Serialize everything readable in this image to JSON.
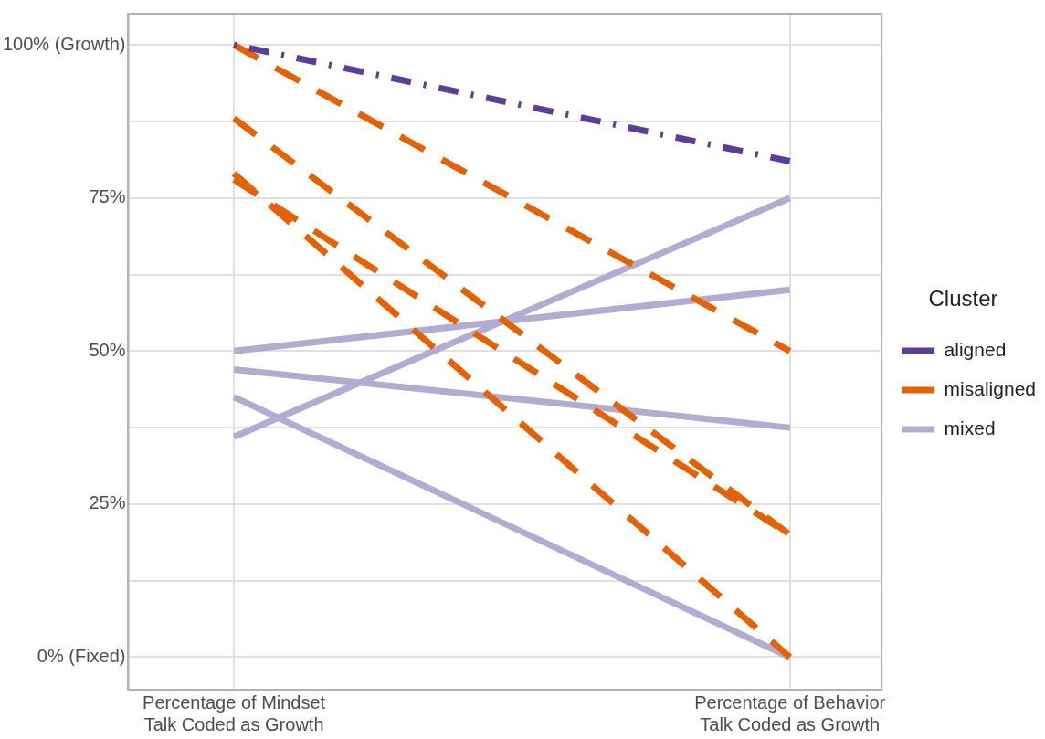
{
  "chart_data": {
    "type": "line",
    "legend_title": "Cluster",
    "legend": "right",
    "grid": true,
    "categories": [
      "Percentage of Mindset\nTalk Coded as Growth",
      "Percentage of Behavior\nTalk Coded as Growth"
    ],
    "ylim": [
      -5.3,
      105.1
    ],
    "yticks": [
      {
        "value": 0,
        "label": "0% (Fixed)"
      },
      {
        "value": 12.5,
        "label": null
      },
      {
        "value": 25,
        "label": "25%"
      },
      {
        "value": 37.5,
        "label": null
      },
      {
        "value": 50,
        "label": "50%"
      },
      {
        "value": 62.5,
        "label": null
      },
      {
        "value": 75,
        "label": "75%"
      },
      {
        "value": 87.5,
        "label": null
      },
      {
        "value": 100,
        "label": "100% (Growth)"
      }
    ],
    "series": [
      {
        "name": "aligned",
        "color": "#5e3c99",
        "line_style": "dotted",
        "values": [
          100,
          81
        ]
      },
      {
        "name": "misaligned",
        "color": "#e66101",
        "line_style": "dashed",
        "values": [
          100,
          50
        ]
      },
      {
        "color": "#e66101",
        "line_style": "dashed",
        "values": [
          88,
          20
        ]
      },
      {
        "color": "#e66101",
        "line_style": "dashed",
        "values": [
          79,
          0
        ]
      },
      {
        "color": "#e66101",
        "line_style": "dashed",
        "values": [
          78,
          20
        ]
      },
      {
        "name": "mixed",
        "color": "#b2abd2",
        "line_style": "solid",
        "values": [
          50,
          60
        ]
      },
      {
        "color": "#b2abd2",
        "line_style": "solid",
        "values": [
          47,
          37.5
        ]
      },
      {
        "color": "#b2abd2",
        "line_style": "solid",
        "values": [
          42.5,
          0
        ]
      },
      {
        "color": "#b2abd2",
        "line_style": "solid",
        "values": [
          36,
          75
        ]
      }
    ]
  }
}
